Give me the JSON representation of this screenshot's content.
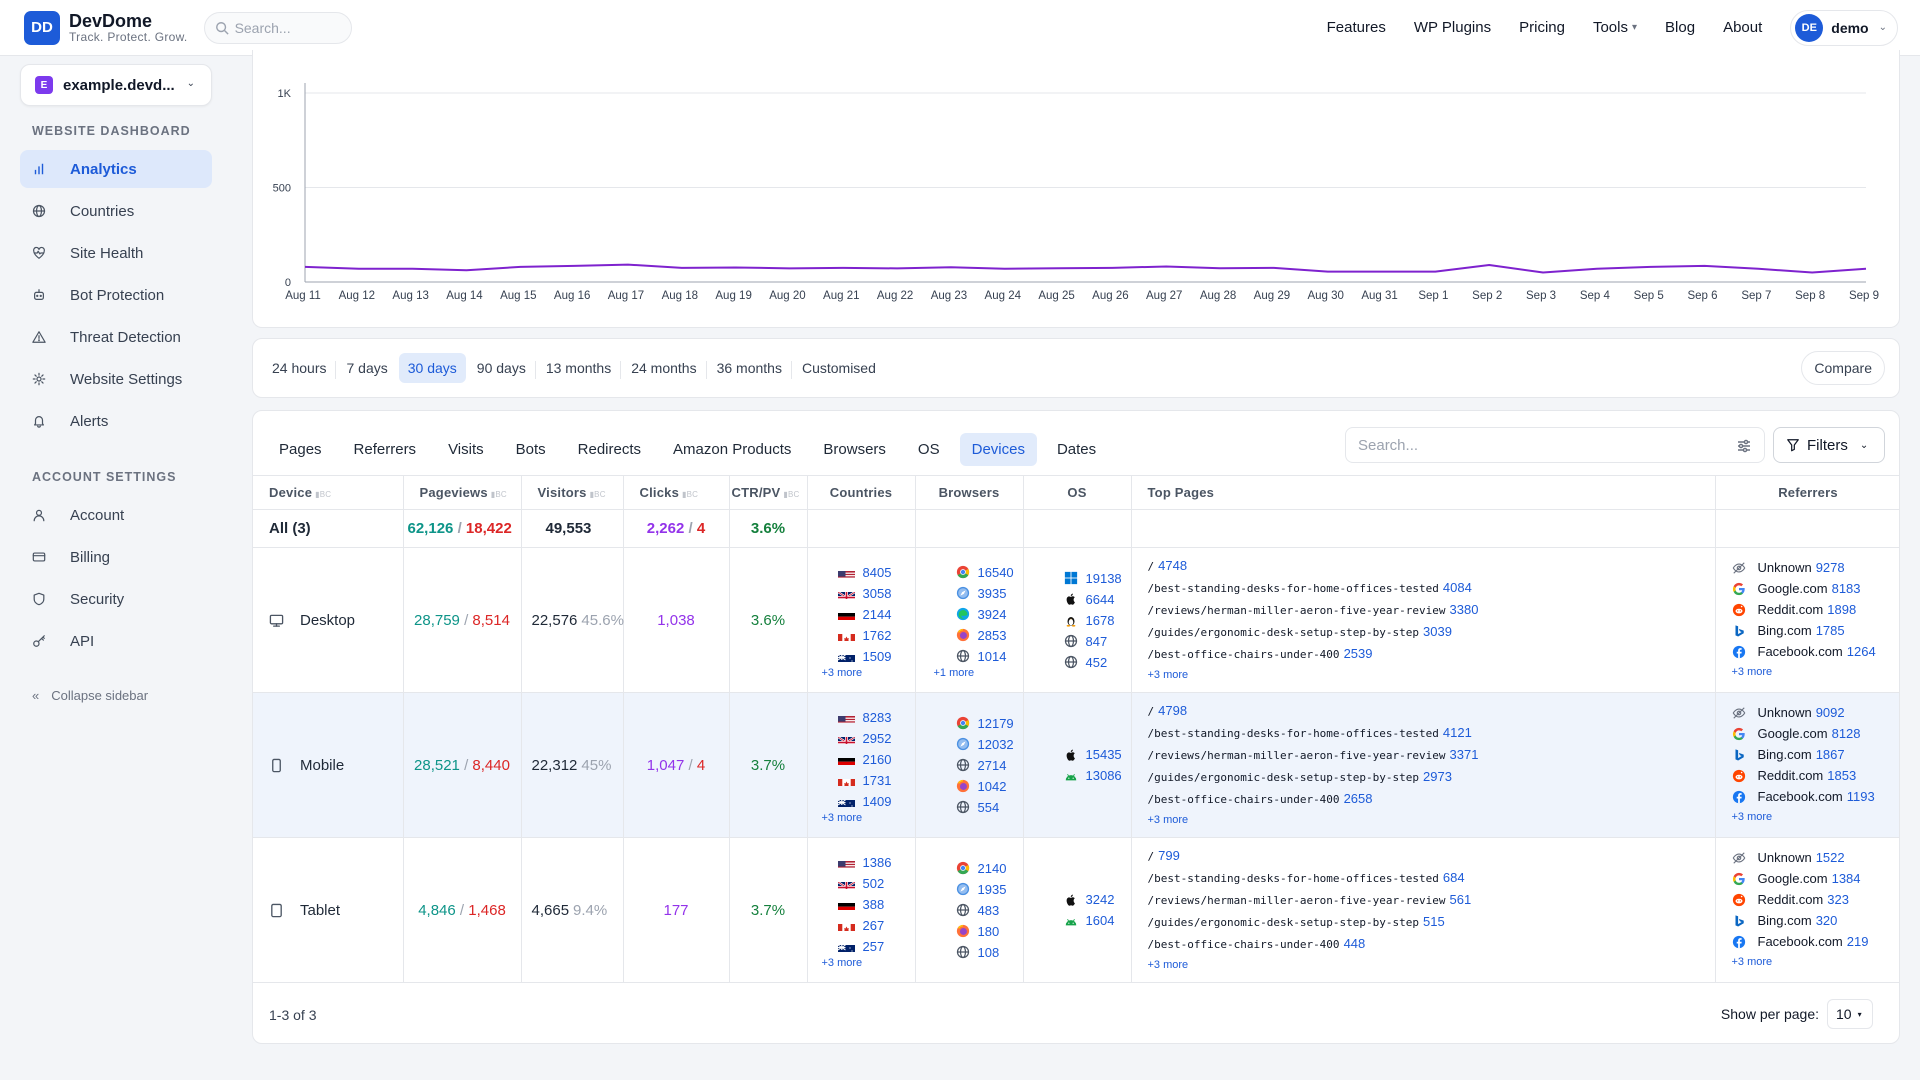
{
  "brand": {
    "logo": "DD",
    "name": "DevDome",
    "tagline": "Track. Protect. Grow."
  },
  "search": {
    "placeholder": "Search..."
  },
  "nav": [
    "Features",
    "WP Plugins",
    "Pricing",
    "Tools",
    "Blog",
    "About"
  ],
  "user": {
    "initials": "DE",
    "name": "demo"
  },
  "site": {
    "badge": "E",
    "name": "example.devd..."
  },
  "sidebar": {
    "dashboard_heading": "WEBSITE DASHBOARD",
    "dashboard_items": [
      {
        "label": "Analytics",
        "icon": "bar-chart-icon"
      },
      {
        "label": "Countries",
        "icon": "globe-icon"
      },
      {
        "label": "Site Health",
        "icon": "heart-pulse-icon"
      },
      {
        "label": "Bot Protection",
        "icon": "bot-icon"
      },
      {
        "label": "Threat Detection",
        "icon": "warning-icon"
      },
      {
        "label": "Website Settings",
        "icon": "gear-icon"
      },
      {
        "label": "Alerts",
        "icon": "bell-icon"
      }
    ],
    "account_heading": "ACCOUNT SETTINGS",
    "account_items": [
      {
        "label": "Account",
        "icon": "user-icon"
      },
      {
        "label": "Billing",
        "icon": "credit-card-icon"
      },
      {
        "label": "Security",
        "icon": "shield-icon"
      },
      {
        "label": "API",
        "icon": "key-icon"
      }
    ],
    "collapse": "Collapse sidebar"
  },
  "chart_data": {
    "type": "line",
    "yticks": [
      "1K",
      "500",
      "0"
    ],
    "ylim": [
      0,
      1000
    ],
    "categories": [
      "Aug 11",
      "Aug 12",
      "Aug 13",
      "Aug 14",
      "Aug 15",
      "Aug 16",
      "Aug 17",
      "Aug 18",
      "Aug 19",
      "Aug 20",
      "Aug 21",
      "Aug 22",
      "Aug 23",
      "Aug 24",
      "Aug 25",
      "Aug 26",
      "Aug 27",
      "Aug 28",
      "Aug 29",
      "Aug 30",
      "Aug 31",
      "Sep 1",
      "Sep 2",
      "Sep 3",
      "Sep 4",
      "Sep 5",
      "Sep 6",
      "Sep 7",
      "Sep 8",
      "Sep 9"
    ],
    "series": [
      {
        "values": [
          80,
          70,
          70,
          62,
          80,
          85,
          92,
          75,
          77,
          72,
          75,
          72,
          78,
          70,
          73,
          75,
          82,
          73,
          75,
          55,
          55,
          55,
          90,
          50,
          70,
          80,
          85,
          70,
          50,
          70
        ],
        "color": "#7e22ce"
      }
    ],
    "grid": true
  },
  "ranges": [
    "24 hours",
    "7 days",
    "30 days",
    "90 days",
    "13 months",
    "24 months",
    "36 months",
    "Customised"
  ],
  "active_range": "30 days",
  "compare": "Compare",
  "tabs": [
    "Pages",
    "Referrers",
    "Visits",
    "Bots",
    "Redirects",
    "Amazon Products",
    "Browsers",
    "OS",
    "Devices",
    "Dates"
  ],
  "active_tab": "Devices",
  "table_search": {
    "placeholder": "Search..."
  },
  "filters_label": "Filters",
  "columns": {
    "device": "Device",
    "pageviews": "Pageviews",
    "visitors": "Visitors",
    "clicks": "Clicks",
    "ctr": "CTR/PV",
    "countries": "Countries",
    "browsers": "Browsers",
    "os": "OS",
    "top_pages": "Top Pages",
    "referrers": "Referrers",
    "bc": "BC"
  },
  "all_row": {
    "label": "All (3)",
    "pageviews": "62,126",
    "pageviews_bot": "18,422",
    "visitors": "49,553",
    "clicks": "2,262",
    "clicks_extra": "4",
    "ctr": "3.6%"
  },
  "rows": [
    {
      "device": "Desktop",
      "icon": "monitor-icon",
      "pageviews": "28,759",
      "pageviews_bot": "8,514",
      "visitors": "22,576",
      "visitors_pct": "45.6%",
      "clicks": "1,038",
      "clicks_extra": "",
      "ctr": "3.6%",
      "countries": [
        {
          "flag": "us",
          "v": "8405"
        },
        {
          "flag": "gb",
          "v": "3058"
        },
        {
          "flag": "de",
          "v": "2144"
        },
        {
          "flag": "ca",
          "v": "1762"
        },
        {
          "flag": "au",
          "v": "1509"
        }
      ],
      "countries_more": "+3 more",
      "browsers": [
        {
          "icon": "chrome-icon",
          "v": "16540"
        },
        {
          "icon": "safari-icon",
          "v": "3935"
        },
        {
          "icon": "edge-icon",
          "v": "3924"
        },
        {
          "icon": "firefox-icon",
          "v": "2853"
        },
        {
          "icon": "globe-icon",
          "v": "1014"
        }
      ],
      "browsers_more": "+1 more",
      "os": [
        {
          "icon": "windows-icon",
          "v": "19138"
        },
        {
          "icon": "apple-icon",
          "v": "6644"
        },
        {
          "icon": "linux-icon",
          "v": "1678"
        },
        {
          "icon": "globe-icon",
          "v": "847"
        },
        {
          "icon": "globe-icon",
          "v": "452"
        }
      ],
      "pages": [
        {
          "p": "/",
          "v": "4748"
        },
        {
          "p": "/best-standing-desks-for-home-offices-tested",
          "v": "4084"
        },
        {
          "p": "/reviews/herman-miller-aeron-five-year-review",
          "v": "3380"
        },
        {
          "p": "/guides/ergonomic-desk-setup-step-by-step",
          "v": "3039"
        },
        {
          "p": "/best-office-chairs-under-400",
          "v": "2539"
        }
      ],
      "pages_more": "+3 more",
      "referrers": [
        {
          "icon": "unknown-icon",
          "name": "Unknown",
          "v": "9278"
        },
        {
          "icon": "google-icon",
          "name": "Google.com",
          "v": "8183"
        },
        {
          "icon": "reddit-icon",
          "name": "Reddit.com",
          "v": "1898"
        },
        {
          "icon": "bing-icon",
          "name": "Bing.com",
          "v": "1785"
        },
        {
          "icon": "facebook-icon",
          "name": "Facebook.com",
          "v": "1264"
        }
      ],
      "referrers_more": "+3 more"
    },
    {
      "device": "Mobile",
      "icon": "phone-icon",
      "pageviews": "28,521",
      "pageviews_bot": "8,440",
      "visitors": "22,312",
      "visitors_pct": "45%",
      "clicks": "1,047",
      "clicks_extra": "4",
      "ctr": "3.7%",
      "countries": [
        {
          "flag": "us",
          "v": "8283"
        },
        {
          "flag": "gb",
          "v": "2952"
        },
        {
          "flag": "de",
          "v": "2160"
        },
        {
          "flag": "ca",
          "v": "1731"
        },
        {
          "flag": "au",
          "v": "1409"
        }
      ],
      "countries_more": "+3 more",
      "browsers": [
        {
          "icon": "chrome-icon",
          "v": "12179"
        },
        {
          "icon": "safari-icon",
          "v": "12032"
        },
        {
          "icon": "globe-icon",
          "v": "2714"
        },
        {
          "icon": "firefox-icon",
          "v": "1042"
        },
        {
          "icon": "globe-icon",
          "v": "554"
        }
      ],
      "browsers_more": "",
      "os": [
        {
          "icon": "apple-icon",
          "v": "15435"
        },
        {
          "icon": "android-icon",
          "v": "13086"
        }
      ],
      "pages": [
        {
          "p": "/",
          "v": "4798"
        },
        {
          "p": "/best-standing-desks-for-home-offices-tested",
          "v": "4121"
        },
        {
          "p": "/reviews/herman-miller-aeron-five-year-review",
          "v": "3371"
        },
        {
          "p": "/guides/ergonomic-desk-setup-step-by-step",
          "v": "2973"
        },
        {
          "p": "/best-office-chairs-under-400",
          "v": "2658"
        }
      ],
      "pages_more": "+3 more",
      "referrers": [
        {
          "icon": "unknown-icon",
          "name": "Unknown",
          "v": "9092"
        },
        {
          "icon": "google-icon",
          "name": "Google.com",
          "v": "8128"
        },
        {
          "icon": "bing-icon",
          "name": "Bing.com",
          "v": "1867"
        },
        {
          "icon": "reddit-icon",
          "name": "Reddit.com",
          "v": "1853"
        },
        {
          "icon": "facebook-icon",
          "name": "Facebook.com",
          "v": "1193"
        }
      ],
      "referrers_more": "+3 more"
    },
    {
      "device": "Tablet",
      "icon": "tablet-icon",
      "pageviews": "4,846",
      "pageviews_bot": "1,468",
      "visitors": "4,665",
      "visitors_pct": "9.4%",
      "clicks": "177",
      "clicks_extra": "",
      "ctr": "3.7%",
      "countries": [
        {
          "flag": "us",
          "v": "1386"
        },
        {
          "flag": "gb",
          "v": "502"
        },
        {
          "flag": "de",
          "v": "388"
        },
        {
          "flag": "ca",
          "v": "267"
        },
        {
          "flag": "au",
          "v": "257"
        }
      ],
      "countries_more": "+3 more",
      "browsers": [
        {
          "icon": "chrome-icon",
          "v": "2140"
        },
        {
          "icon": "safari-icon",
          "v": "1935"
        },
        {
          "icon": "globe-icon",
          "v": "483"
        },
        {
          "icon": "firefox-icon",
          "v": "180"
        },
        {
          "icon": "globe-icon",
          "v": "108"
        }
      ],
      "browsers_more": "",
      "os": [
        {
          "icon": "apple-icon",
          "v": "3242"
        },
        {
          "icon": "android-icon",
          "v": "1604"
        }
      ],
      "pages": [
        {
          "p": "/",
          "v": "799"
        },
        {
          "p": "/best-standing-desks-for-home-offices-tested",
          "v": "684"
        },
        {
          "p": "/reviews/herman-miller-aeron-five-year-review",
          "v": "561"
        },
        {
          "p": "/guides/ergonomic-desk-setup-step-by-step",
          "v": "515"
        },
        {
          "p": "/best-office-chairs-under-400",
          "v": "448"
        }
      ],
      "pages_more": "+3 more",
      "referrers": [
        {
          "icon": "unknown-icon",
          "name": "Unknown",
          "v": "1522"
        },
        {
          "icon": "google-icon",
          "name": "Google.com",
          "v": "1384"
        },
        {
          "icon": "reddit-icon",
          "name": "Reddit.com",
          "v": "323"
        },
        {
          "icon": "bing-icon",
          "name": "Bing.com",
          "v": "320"
        },
        {
          "icon": "facebook-icon",
          "name": "Facebook.com",
          "v": "219"
        }
      ],
      "referrers_more": "+3 more"
    }
  ],
  "pagination": {
    "summary": "1-3 of 3",
    "per_page_label": "Show per page:",
    "per_page": "10"
  }
}
